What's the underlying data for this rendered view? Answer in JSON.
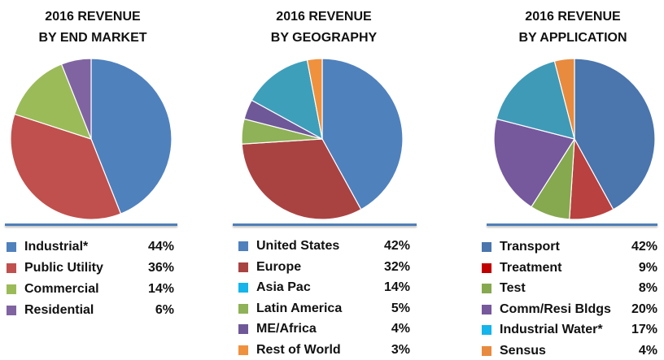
{
  "chart_data": [
    {
      "type": "pie",
      "title_lines": [
        "2016 REVENUE",
        "BY END MARKET"
      ],
      "labels": [
        "Industrial*",
        "Public Utility",
        "Commercial",
        "Residential"
      ],
      "values": [
        44,
        36,
        14,
        6
      ],
      "value_labels": [
        "44%",
        "36%",
        "14%",
        "6%"
      ],
      "colors": [
        "#4f81bd",
        "#c0504d",
        "#9bbb59",
        "#8064a2"
      ]
    },
    {
      "type": "pie",
      "title_lines": [
        "2016 REVENUE",
        "BY GEOGRAPHY"
      ],
      "labels": [
        "United States",
        "Europe",
        "Asia Pac",
        "Latin America",
        "ME/Africa",
        "Rest of World"
      ],
      "values": [
        42,
        32,
        14,
        5,
        4,
        3
      ],
      "value_labels": [
        "42%",
        "32%",
        "14%",
        "5%",
        "4%",
        "3%"
      ],
      "colors": [
        "#4f81bd",
        "#a94342",
        "#3e9fba",
        "#8fb157",
        "#6f5898",
        "#f0913e"
      ],
      "legend_colors": [
        "#4f81bd",
        "#a94342",
        "#13b5ea",
        "#8fb157",
        "#6f5898",
        "#f0913e"
      ],
      "slice_order": [
        0,
        1,
        3,
        4,
        2,
        5
      ]
    },
    {
      "type": "pie",
      "title_lines": [
        "2016 REVENUE",
        "BY APPLICATION"
      ],
      "labels": [
        "Transport",
        "Treatment",
        "Test",
        "Comm/Resi Bldgs",
        "Industrial Water*",
        "Sensus"
      ],
      "values": [
        42,
        9,
        8,
        20,
        17,
        4
      ],
      "value_labels": [
        "42%",
        "9%",
        "8%",
        "20%",
        "17%",
        "4%"
      ],
      "colors": [
        "#4a75ad",
        "#b9413f",
        "#86a84f",
        "#76589d",
        "#3f9ab7",
        "#e88b3e"
      ],
      "legend_colors": [
        "#4a75ad",
        "#c00000",
        "#86a84f",
        "#76589d",
        "#13b5ea",
        "#e88b3e"
      ]
    }
  ]
}
